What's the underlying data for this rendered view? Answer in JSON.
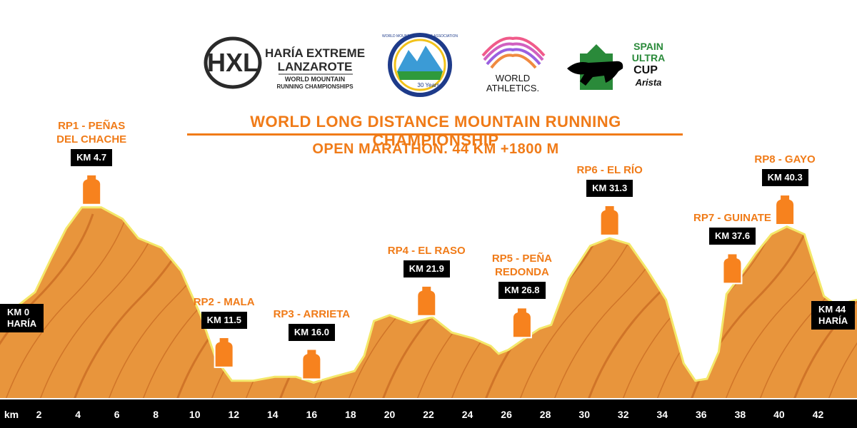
{
  "logos": {
    "hxl_mark": "HXL",
    "hxl_line1": "HARÍA EXTREME",
    "hxl_line2": "LANZAROTE",
    "hxl_line3": "WORLD MOUNTAIN",
    "hxl_line4": "RUNNING CHAMPIONSHIPS",
    "wmra_text": "WORLD MOUNTAIN RUNNING ASSOCIATION",
    "wmra_years": "30 Years",
    "wa_line1": "WORLD",
    "wa_line2": "ATHLETICS.",
    "suc_line1": "SPAIN",
    "suc_line2": "ULTRA",
    "suc_line3": "CUP",
    "suc_sponsor": "Arista"
  },
  "colors": {
    "accent": "#f07b18",
    "terrain_fill": "#e8953c",
    "terrain_dark": "#c86a22",
    "terrain_edge": "#f4e86a",
    "box": "#000000"
  },
  "chart_data": {
    "type": "area",
    "title": "WORLD LONG DISTANCE MOUNTAIN RUNNING CHAMPIONSHIP",
    "subtitle": "OPEN MARATHON.  44 KM +1800 M",
    "xlabel": "km",
    "xlim": [
      0,
      44
    ],
    "x_ticks": [
      2,
      4,
      6,
      8,
      10,
      12,
      14,
      16,
      18,
      20,
      22,
      24,
      26,
      28,
      30,
      32,
      34,
      36,
      38,
      40,
      42
    ],
    "elevation_relative": [
      [
        0,
        0.42
      ],
      [
        0.8,
        0.47
      ],
      [
        1.8,
        0.55
      ],
      [
        2.6,
        0.72
      ],
      [
        3.4,
        0.88
      ],
      [
        4.2,
        0.99
      ],
      [
        5.2,
        0.99
      ],
      [
        6.3,
        0.93
      ],
      [
        7.1,
        0.83
      ],
      [
        8.3,
        0.78
      ],
      [
        9.3,
        0.66
      ],
      [
        10.3,
        0.43
      ],
      [
        11.1,
        0.2
      ],
      [
        11.9,
        0.09
      ],
      [
        13,
        0.09
      ],
      [
        14.1,
        0.11
      ],
      [
        15.2,
        0.11
      ],
      [
        16.1,
        0.08
      ],
      [
        17.1,
        0.11
      ],
      [
        18.2,
        0.14
      ],
      [
        18.7,
        0.22
      ],
      [
        19.2,
        0.4
      ],
      [
        20,
        0.43
      ],
      [
        21.1,
        0.39
      ],
      [
        22.2,
        0.42
      ],
      [
        23.2,
        0.34
      ],
      [
        24.3,
        0.31
      ],
      [
        25.2,
        0.27
      ],
      [
        25.6,
        0.23
      ],
      [
        26.1,
        0.25
      ],
      [
        27.1,
        0.32
      ],
      [
        27.7,
        0.36
      ],
      [
        28.3,
        0.38
      ],
      [
        29.2,
        0.62
      ],
      [
        30.3,
        0.79
      ],
      [
        31.3,
        0.83
      ],
      [
        32.3,
        0.8
      ],
      [
        33.2,
        0.67
      ],
      [
        34.2,
        0.51
      ],
      [
        35.1,
        0.18
      ],
      [
        35.7,
        0.09
      ],
      [
        36.3,
        0.1
      ],
      [
        36.9,
        0.24
      ],
      [
        37.3,
        0.54
      ],
      [
        37.9,
        0.62
      ],
      [
        38.8,
        0.75
      ],
      [
        39.6,
        0.85
      ],
      [
        40.4,
        0.89
      ],
      [
        41.3,
        0.85
      ],
      [
        42.3,
        0.53
      ],
      [
        43.1,
        0.47
      ],
      [
        43.6,
        0.5
      ],
      [
        44,
        0.51
      ]
    ],
    "start": {
      "km_label": "KM 0",
      "name": "HARÍA"
    },
    "finish": {
      "km_label": "KM 44",
      "name": "HARÍA"
    },
    "refreshment_points": [
      {
        "name": "RP1 - PEÑAS DEL CHACHE",
        "line1": "RP1 - PEÑAS",
        "line2": "DEL CHACHE",
        "km": 4.7,
        "km_label": "KM 4.7"
      },
      {
        "name": "RP2 - MALA",
        "line1": "RP2 - MALA",
        "line2": "",
        "km": 11.5,
        "km_label": "KM 11.5"
      },
      {
        "name": "RP3 - ARRIETA",
        "line1": "RP3 - ARRIETA",
        "line2": "",
        "km": 16.0,
        "km_label": "KM 16.0"
      },
      {
        "name": "RP4 - EL RASO",
        "line1": "RP4 - EL RASO",
        "line2": "",
        "km": 21.9,
        "km_label": "KM 21.9"
      },
      {
        "name": "RP5 - PEÑA REDONDA",
        "line1": "RP5 - PEÑA",
        "line2": "REDONDA",
        "km": 26.8,
        "km_label": "KM 26.8"
      },
      {
        "name": "RP6 - EL RÍO",
        "line1": "RP6 - EL RÍO",
        "line2": "",
        "km": 31.3,
        "km_label": "KM 31.3"
      },
      {
        "name": "RP7 - GUINATE",
        "line1": "RP7 - GUINATE",
        "line2": "",
        "km": 37.6,
        "km_label": "KM 37.6"
      },
      {
        "name": "RP8 - GAYO",
        "line1": "RP8 - GAYO",
        "line2": "",
        "km": 40.3,
        "km_label": "KM 40.3"
      }
    ],
    "grid": false,
    "legend": "none"
  }
}
